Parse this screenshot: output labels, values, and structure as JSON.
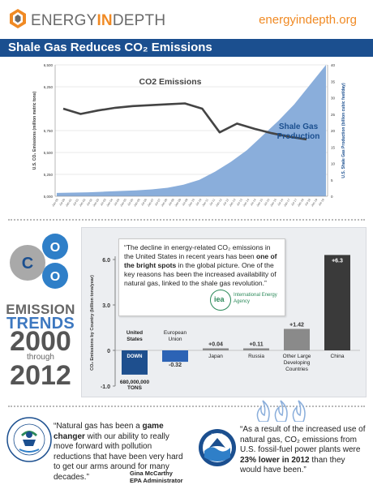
{
  "header": {
    "logo_text_main": "ENERGY",
    "logo_text_in": "IN",
    "logo_text_end": "DEPTH",
    "site_url": "energyindepth.org"
  },
  "title": "Shale Gas Reduces CO₂ Emissions",
  "chart_data": [
    {
      "type": "line",
      "series": [
        {
          "name": "CO2 Emissions",
          "label": "CO2 Emissions",
          "axis": "left",
          "x": [
            "Jan-05",
            "Jul-05",
            "Jan-06",
            "Jul-06",
            "Jan-07",
            "Jul-07",
            "Jan-08",
            "Jul-08",
            "Jan-09",
            "Jul-09",
            "Jan-10",
            "Jul-10",
            "Jan-11",
            "Jul-11",
            "Jan-12"
          ],
          "values": [
            6000,
            5940,
            5980,
            6010,
            6030,
            6040,
            6050,
            6060,
            6000,
            5730,
            5830,
            5770,
            5720,
            5680,
            5650
          ]
        },
        {
          "name": "Shale Gas Production",
          "label_line1": "Shale Gas",
          "label_line2": "Production",
          "axis": "right",
          "values": [
            1.0,
            1.1,
            1.2,
            1.4,
            1.6,
            1.8,
            2.1,
            2.6,
            3.5,
            5.0,
            7.5,
            10.5,
            14.0,
            18.5,
            23.0,
            28.0,
            34.0,
            40.0
          ]
        }
      ],
      "ylabel": "U.S. CO₂ Emissions (million metric tons)",
      "y2label": "U.S. Shale Gas Production (billion cubic feet/day)",
      "ylim": [
        5000,
        6500
      ],
      "y2lim": [
        0,
        40
      ],
      "y_ticks": [
        "6,500",
        "6,250",
        "5,750",
        "5,500",
        "5,250",
        "5,000"
      ],
      "y_tick_values": [
        6500,
        6250,
        5750,
        5500,
        5250,
        5000
      ],
      "y2_ticks": [
        "40",
        "35",
        "30",
        "25",
        "20",
        "15",
        "10",
        "5",
        "0"
      ],
      "x_ticks": [
        "Jan-00",
        "Jul-00",
        "Jan-01",
        "Jul-01",
        "Jan-02",
        "Jul-02",
        "Jan-03",
        "Jul-03",
        "Jan-04",
        "Jul-04",
        "Jan-05",
        "Jul-05",
        "Jan-06",
        "Jul-06",
        "Jan-07",
        "Jul-07",
        "Jan-08",
        "Jul-08",
        "Jan-09",
        "Jul-09",
        "Jan-10",
        "Jul-10",
        "Jan-11",
        "Jul-11",
        "Jan-12",
        "Jul-12",
        "Jan-13",
        "Jul-13",
        "Jan-14",
        "Jul-14",
        "Jan-15",
        "Jul-15",
        "Jan-16",
        "Jul-16",
        "Jan-17",
        "Jul-17",
        "Jan-18",
        "Jul-18",
        "Jan-19",
        "Jul-19"
      ],
      "grid": true
    },
    {
      "type": "bar",
      "ylabel": "CO₂ Emissions by Country (billion tons/year)",
      "ylim": [
        -1.0,
        6.0
      ],
      "y_ticks": [
        "6.0",
        "3.0",
        "0",
        "-1.0"
      ],
      "categories": [
        "United States",
        "European Union",
        "Japan",
        "Russia",
        "Other Large Developing Countries",
        "China"
      ],
      "values": [
        -0.68,
        -0.32,
        0.04,
        0.11,
        1.42,
        6.3
      ],
      "value_labels": [
        "DOWN",
        "-0.32",
        "+0.04",
        "+0.11",
        "+1.42",
        "+6.3"
      ],
      "us_label": "680,000,000 TONS"
    }
  ],
  "left_panel": {
    "molecule_c": "C",
    "molecule_o1": "O",
    "molecule_o2": "O",
    "emission": "EMISSION",
    "trends": "TRENDS",
    "year_start": "2000",
    "through": "through",
    "year_end": "2012"
  },
  "iea_quote": {
    "part1": "“The decline in energy-related CO₂ emissions in the United States in recent years has been ",
    "bold": "one of the bright spots",
    "part2": " in the global picture. One of the key reasons has been the increased availability of natural gas, linked to the shale gas revolution.”",
    "logo": "iea",
    "logo_name": "International Energy Agency"
  },
  "epa_quote": {
    "part1": "“Natural gas has been a ",
    "bold": "game changer",
    "part2": " with our ability to really move forward with pollution reductions that have been very hard to get our arms around for many decades.”",
    "name": "Gina McCarthy",
    "role": "EPA Administrator"
  },
  "noaa_quote": {
    "part1": "“As a result of the increased use of natural gas, CO₂ emissions from U.S. fossil-fuel power plants were ",
    "bold": "23% lower in 2012",
    "part2": " than they would have been.”",
    "seal": "NOAA"
  },
  "colors": {
    "brand_orange": "#f08a24",
    "title_blue": "#1b4f8f",
    "area_blue": "#8aaedb",
    "line_dark": "#444444",
    "us_bar": "#1e4f8e",
    "eu_bar": "#2c63b5",
    "gray_bar": "#8a8a8a",
    "dark_bar": "#3a3a3a"
  }
}
